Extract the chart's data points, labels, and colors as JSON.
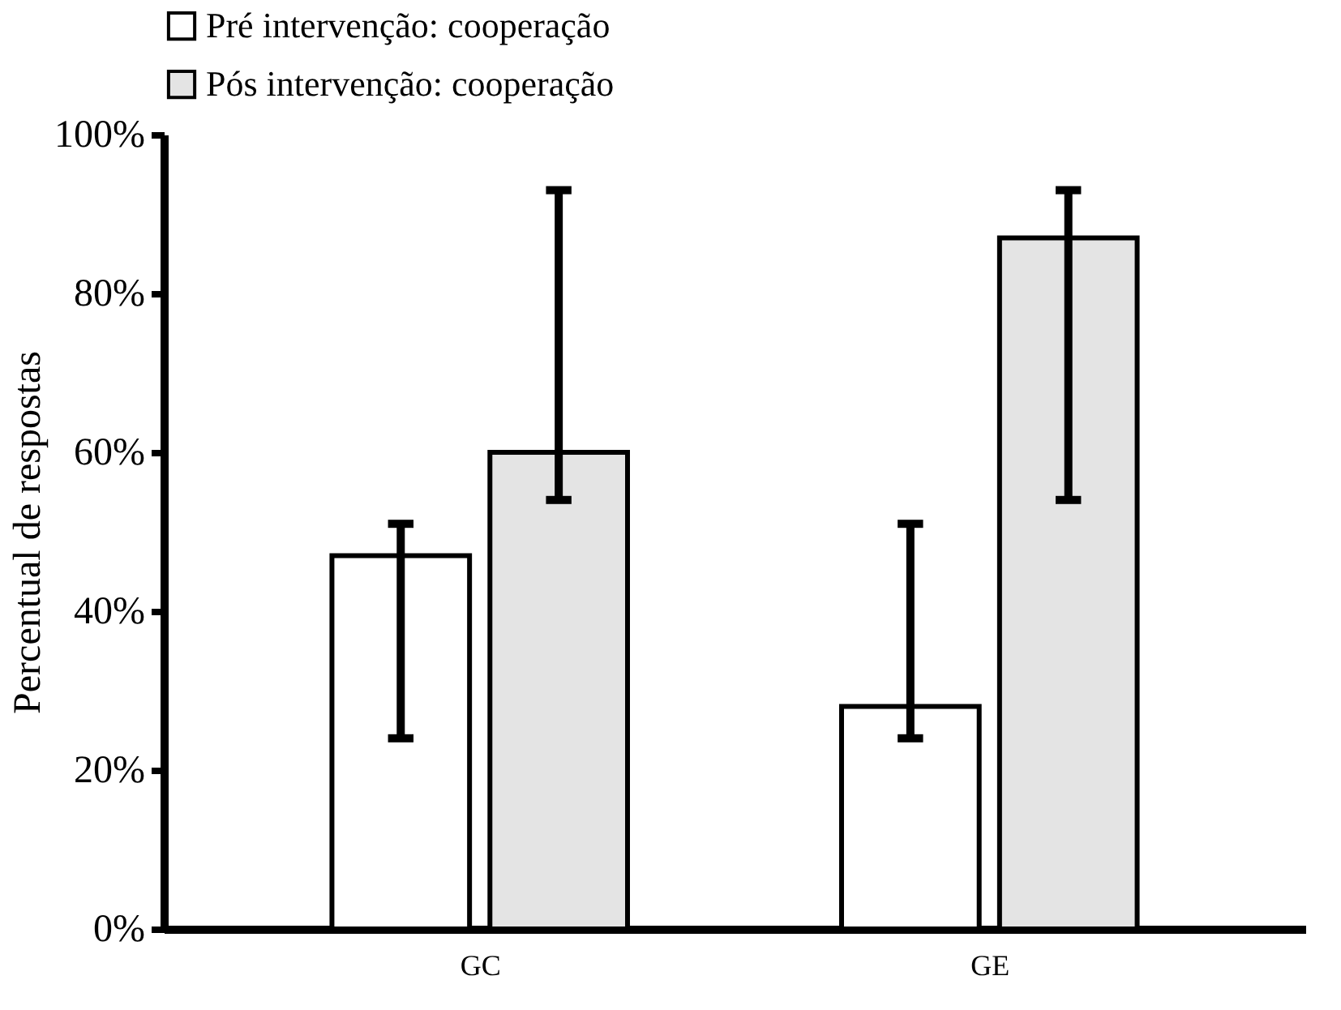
{
  "chart_data": {
    "type": "bar",
    "categories": [
      "GC",
      "GE"
    ],
    "ylabel": "Percentual de respostas",
    "ylim": [
      0,
      100
    ],
    "yticks": [
      {
        "value": 0,
        "label": "0%"
      },
      {
        "value": 20,
        "label": "20%"
      },
      {
        "value": 40,
        "label": "40%"
      },
      {
        "value": 60,
        "label": "60%"
      },
      {
        "value": 80,
        "label": "80%"
      },
      {
        "value": 100,
        "label": "100%"
      }
    ],
    "series": [
      {
        "name": "Pré intervenção: cooperação",
        "color": "#ffffff",
        "values": [
          47,
          28
        ],
        "errors": [
          [
            24,
            51
          ],
          [
            24,
            51
          ]
        ]
      },
      {
        "name": "Pós intervenção: cooperação",
        "color": "#e4e4e4",
        "values": [
          60,
          87
        ],
        "errors": [
          [
            54,
            93
          ],
          [
            54,
            93
          ]
        ]
      }
    ],
    "grid": false,
    "legend": "top"
  }
}
